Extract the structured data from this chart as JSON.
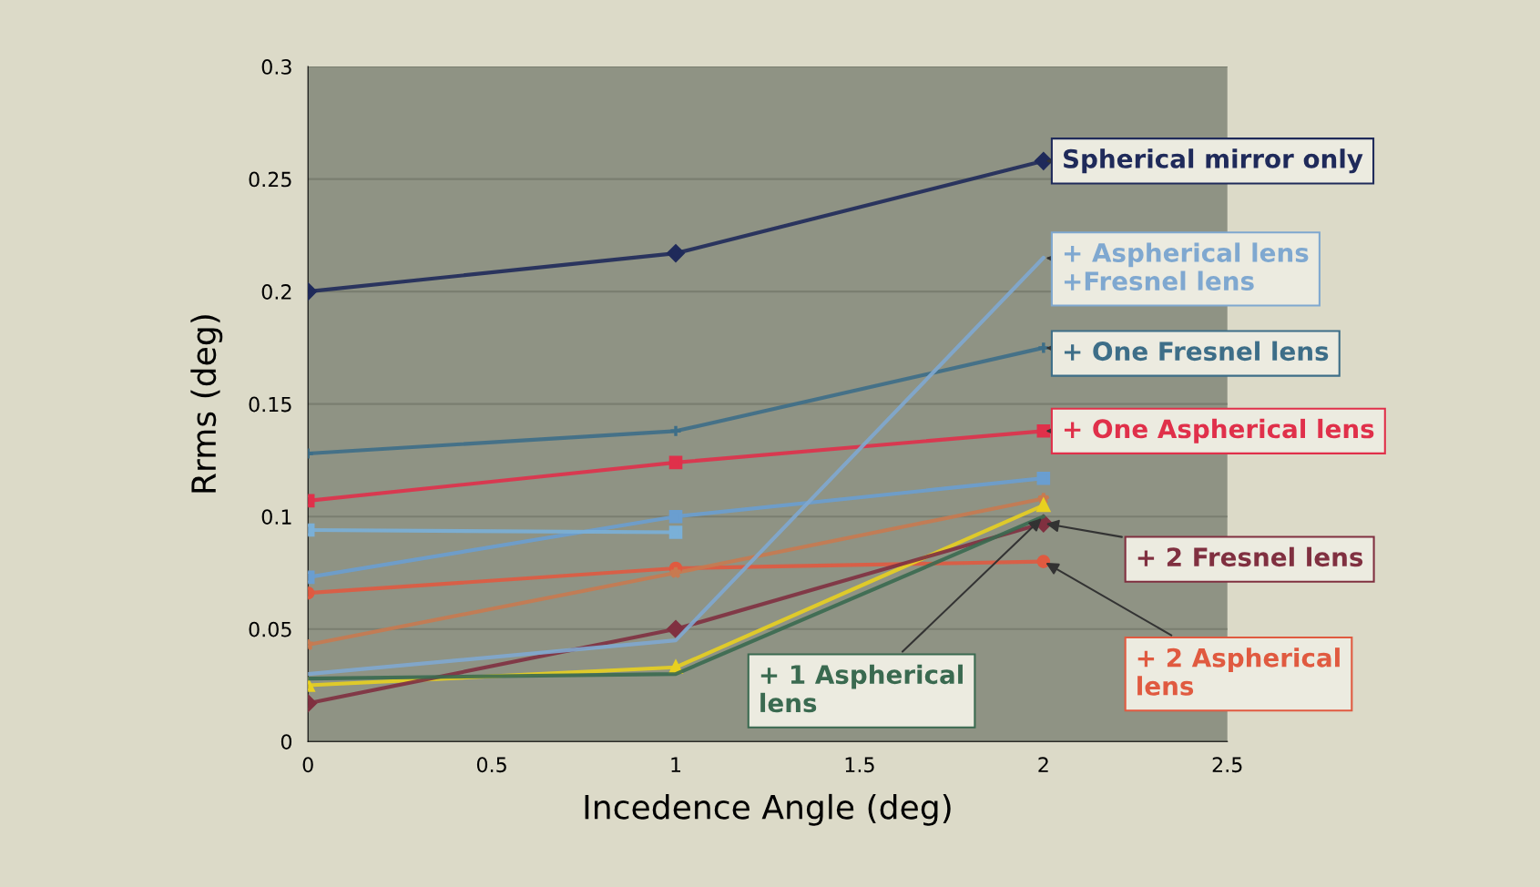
{
  "chart_data": {
    "type": "line",
    "xlabel": "Incedence Angle (deg)",
    "ylabel": "Rrms (deg)",
    "x": [
      0,
      1,
      2
    ],
    "xlim": [
      0,
      2.5
    ],
    "xticks": [
      0,
      0.5,
      1,
      1.5,
      2,
      2.5
    ],
    "ylim": [
      0,
      0.3
    ],
    "yticks": [
      0,
      0.05,
      0.1,
      0.15,
      0.2,
      0.25,
      0.3
    ],
    "grid": "y",
    "line_style": "solid",
    "series": [
      {
        "name": "Spherical mirror only",
        "color": "#1f2a5a",
        "marker": "diamond",
        "values": [
          0.2,
          0.217,
          0.258
        ]
      },
      {
        "name": "+ Aspherical lens\n+Fresnel lens",
        "color": "#7fa8d0",
        "marker": "none",
        "values": [
          0.03,
          0.045,
          0.215
        ]
      },
      {
        "name": "+ One Fresnel lens",
        "color": "#3d6e88",
        "marker": "cross",
        "values": [
          0.128,
          0.138,
          0.175
        ]
      },
      {
        "name": "+ One Aspherical lens",
        "color": "#e0304a",
        "marker": "square",
        "values": [
          0.107,
          0.124,
          0.138
        ]
      },
      {
        "color": "#6a9ed0",
        "marker": "square",
        "values": [
          0.073,
          0.1,
          0.117
        ]
      },
      {
        "color": "#7ab0d8",
        "marker": "square",
        "values": [
          0.094,
          0.093,
          null
        ]
      },
      {
        "name": "+ 2 Aspherical\nlens",
        "color": "#e05a40",
        "marker": "circle",
        "values": [
          0.066,
          0.077,
          0.08
        ]
      },
      {
        "color": "#c87a50",
        "marker": "star",
        "values": [
          0.043,
          0.075,
          0.108
        ]
      },
      {
        "color": "#e8d020",
        "marker": "triangle",
        "values": [
          0.025,
          0.033,
          0.105
        ]
      },
      {
        "name": "+ 1 Aspherical\nlens",
        "color": "#3a6a50",
        "marker": "none",
        "values": [
          0.028,
          0.03,
          0.1
        ]
      },
      {
        "name": "+ 2 Fresnel lens",
        "color": "#803040",
        "marker": "diamond",
        "values": [
          0.017,
          0.05,
          0.097
        ]
      }
    ]
  }
}
